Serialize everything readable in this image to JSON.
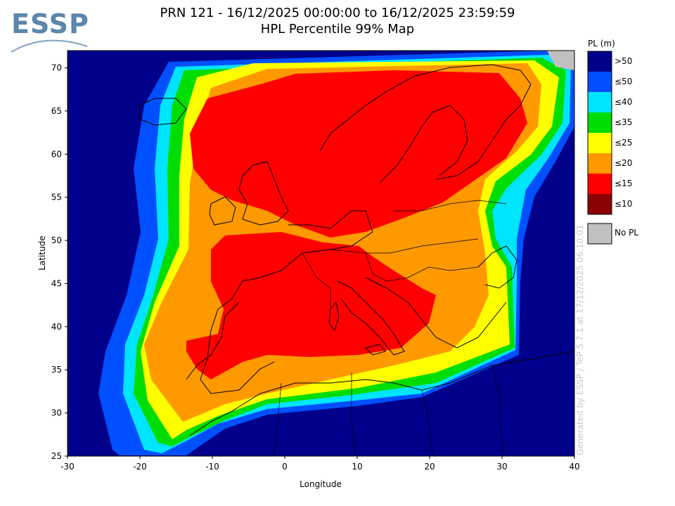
{
  "logo": {
    "text": "ESSP"
  },
  "header": {
    "title_line1": "PRN 121 - 16/12/2025 00:00:00 to 16/12/2025 23:59:59",
    "title_line2": "HPL Percentile 99% Map"
  },
  "axes": {
    "x_label": "Longitude",
    "y_label": "Latitude",
    "x_ticks": [
      "-30",
      "-20",
      "-10",
      "0",
      "10",
      "20",
      "30",
      "40"
    ],
    "y_ticks": [
      "25",
      "30",
      "35",
      "40",
      "45",
      "50",
      "55",
      "60",
      "65",
      "70"
    ]
  },
  "legend": {
    "title": "PL (m)",
    "items": [
      {
        "label": ">50",
        "color": "#00008b"
      },
      {
        "label": "≤50",
        "color": "#0050ff"
      },
      {
        "label": "≤40",
        "color": "#00e5ff"
      },
      {
        "label": "≤35",
        "color": "#00dd00"
      },
      {
        "label": "≤25",
        "color": "#ffff00"
      },
      {
        "label": "≤20",
        "color": "#ff9900"
      },
      {
        "label": "≤15",
        "color": "#ff0000"
      },
      {
        "label": "≤10",
        "color": "#8b0000"
      }
    ],
    "nopl": {
      "label": "No PL",
      "color": "#c0c0c0"
    }
  },
  "watermark": "Generated by ESSP / TeP 5.7.1 at 17/12/2025 06:10:01",
  "map": {
    "lon_range": [
      -30,
      40
    ],
    "lat_range": [
      25,
      72
    ],
    "background_color": "#00008b"
  }
}
